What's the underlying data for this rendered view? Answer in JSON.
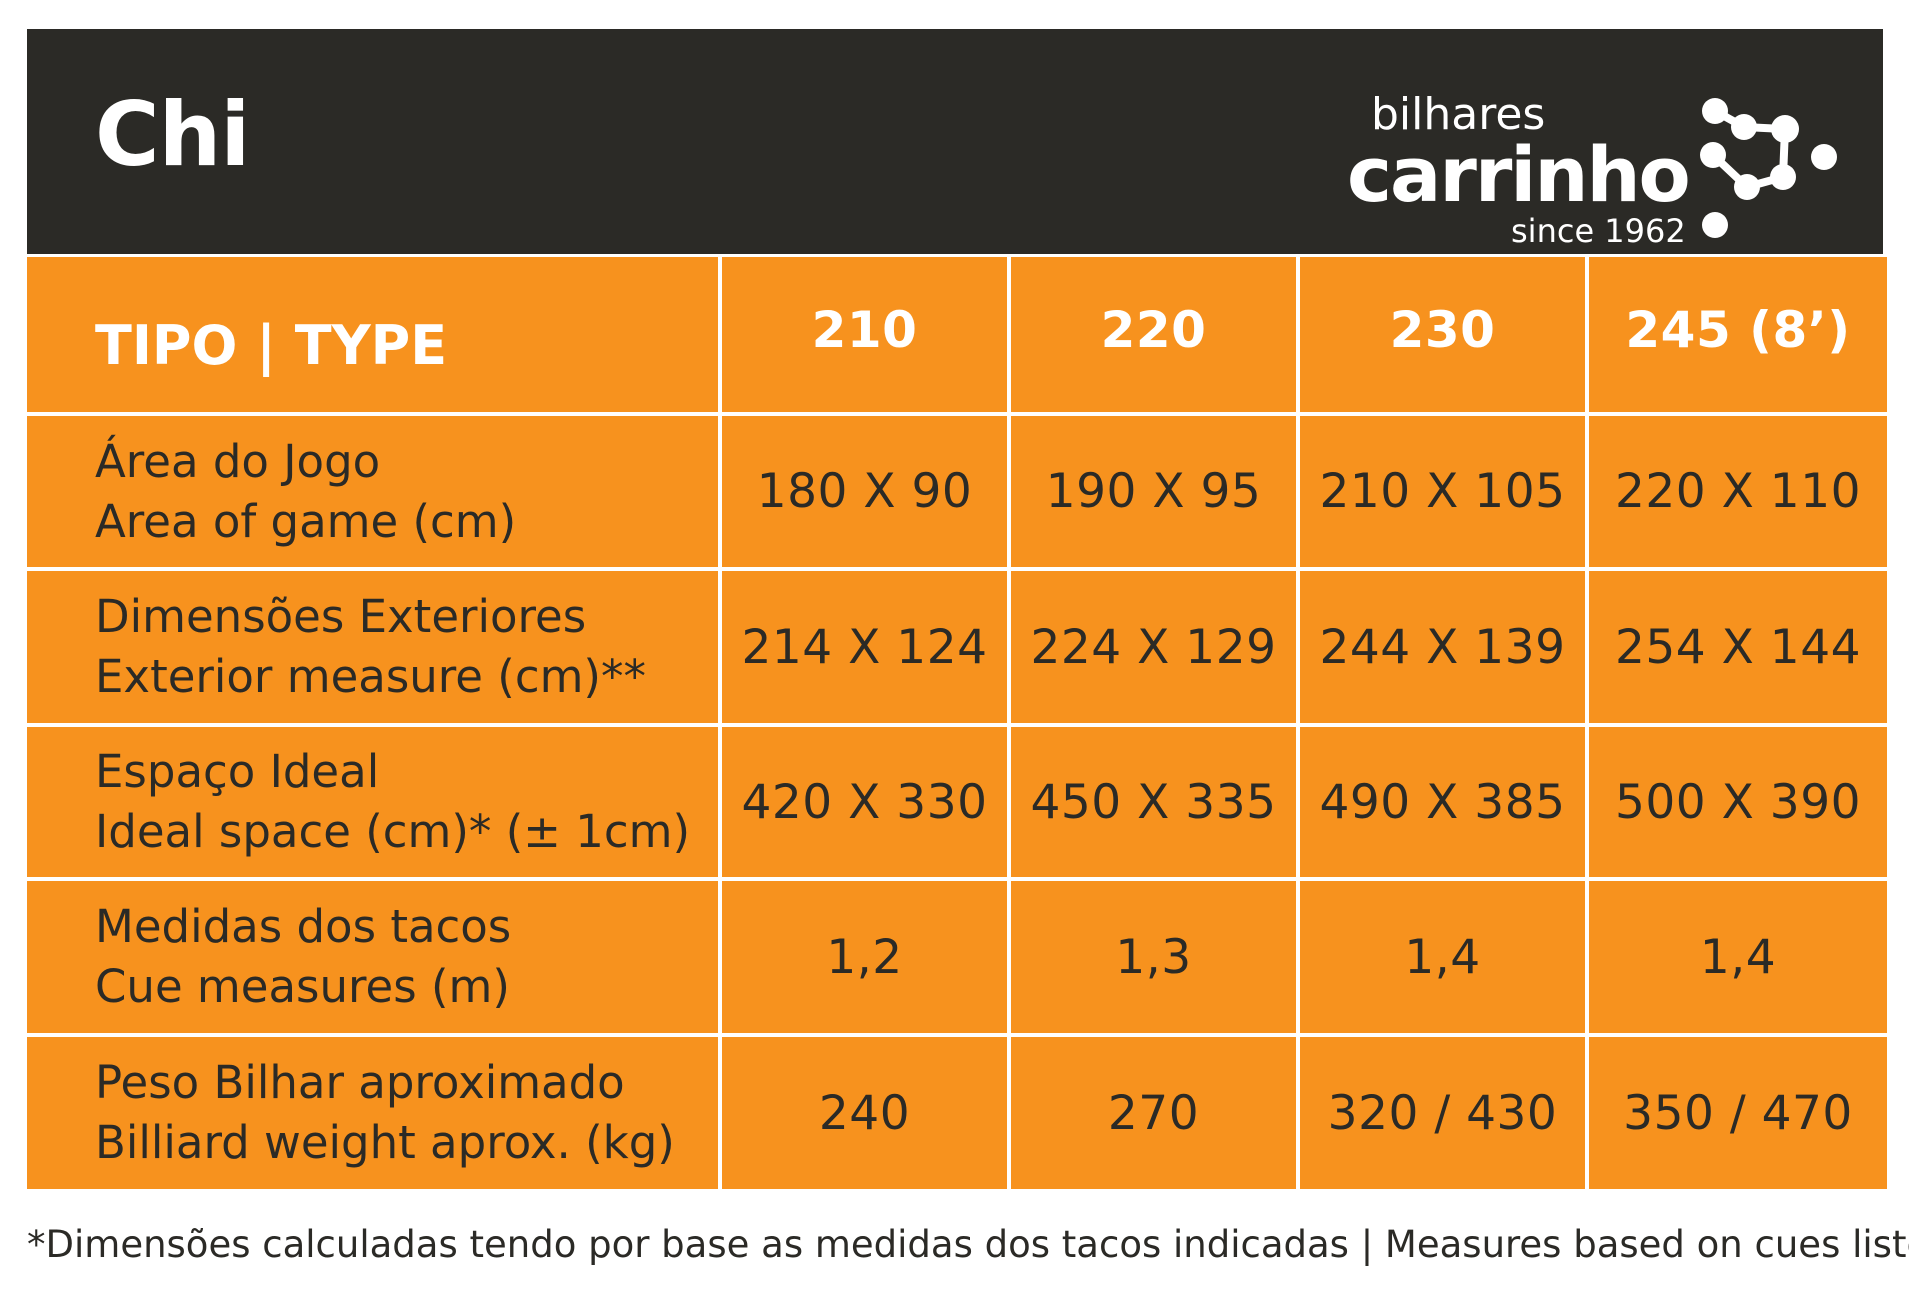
{
  "title": "Chi",
  "logo": {
    "top": "bilhares",
    "main": "carrinho",
    "sub": "since 1962"
  },
  "table": {
    "header": {
      "label": "TIPO | TYPE",
      "columns": [
        "210",
        "220",
        "230",
        "245 (8’)"
      ]
    },
    "rows": [
      {
        "label_pt": "Área do Jogo",
        "label_en": "Area of game (cm)",
        "values": [
          "180 X 90",
          "190 X 95",
          "210 X 105",
          "220 X 110"
        ]
      },
      {
        "label_pt": "Dimensões Exteriores",
        "label_en": "Exterior measure (cm)**",
        "values": [
          "214 X 124",
          "224 X 129",
          "244 X 139",
          "254 X 144"
        ]
      },
      {
        "label_pt": "Espaço Ideal",
        "label_en": "Ideal space (cm)* (± 1cm)",
        "values": [
          "420 X 330",
          "450 X 335",
          "490 X 385",
          "500 X 390"
        ]
      },
      {
        "label_pt": "Medidas dos tacos",
        "label_en": "Cue measures (m)",
        "values": [
          "1,2",
          "1,3",
          "1,4",
          "1,4"
        ]
      },
      {
        "label_pt": "Peso Bilhar aproximado",
        "label_en": "Billiard weight aprox. (kg)",
        "values": [
          "240",
          "270",
          "320 / 430",
          "350 / 470"
        ]
      }
    ]
  },
  "footnote": "*Dimensões calculadas tendo por base as medidas dos tacos indicadas | Measures based on cues listed",
  "colors": {
    "header_bg": "#2b2a26",
    "cell_bg": "#f7921e",
    "text_dark": "#2b2a26",
    "text_light": "#ffffff"
  },
  "icons": [
    "molecule-dots-icon"
  ]
}
